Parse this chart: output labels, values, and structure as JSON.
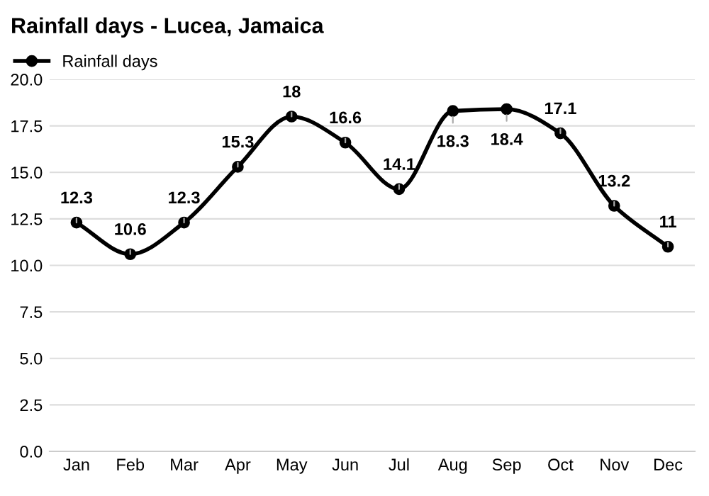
{
  "chart_data": {
    "type": "line",
    "title": "Rainfall days - Lucea, Jamaica",
    "categories": [
      "Jan",
      "Feb",
      "Mar",
      "Apr",
      "May",
      "Jun",
      "Jul",
      "Aug",
      "Sep",
      "Oct",
      "Nov",
      "Dec"
    ],
    "series": [
      {
        "name": "Rainfall days",
        "color": "#000000",
        "values": [
          12.3,
          10.6,
          12.3,
          15.3,
          18,
          16.6,
          14.1,
          18.3,
          18.4,
          17.1,
          13.2,
          11
        ]
      }
    ],
    "ylim": [
      0,
      20
    ],
    "yticks": [
      {
        "value": 0,
        "label": "0.0"
      },
      {
        "value": 2.5,
        "label": "2.5"
      },
      {
        "value": 5,
        "label": "5.0"
      },
      {
        "value": 7.5,
        "label": "7.5"
      },
      {
        "value": 10,
        "label": "10.0"
      },
      {
        "value": 12.5,
        "label": "12.5"
      },
      {
        "value": 15,
        "label": "15.0"
      },
      {
        "value": 17.5,
        "label": "17.5"
      },
      {
        "value": 20,
        "label": "20.0"
      }
    ],
    "grid": "y",
    "legend": "top left",
    "marker": "circle",
    "line_style": "solid",
    "data_labels": true
  }
}
